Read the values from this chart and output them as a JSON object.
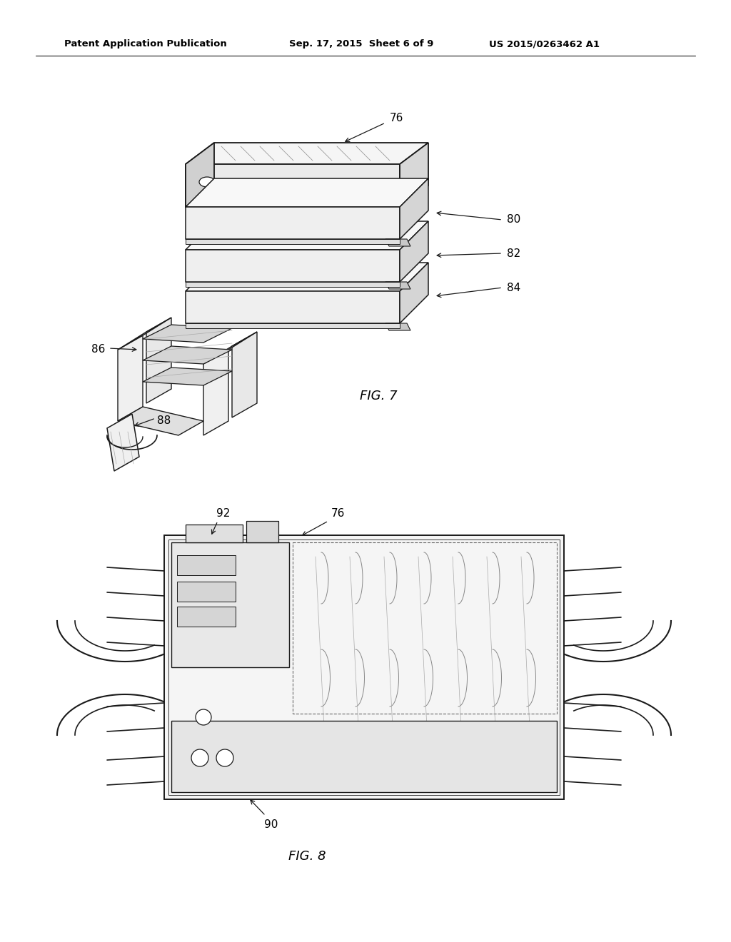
{
  "background_color": "#ffffff",
  "header_left": "Patent Application Publication",
  "header_center": "Sep. 17, 2015  Sheet 6 of 9",
  "header_right": "US 2015/0263462 A1",
  "fig7_label": "FIG. 7",
  "fig8_label": "FIG. 8",
  "line_color": "#1a1a1a",
  "text_color": "#000000",
  "header_fontsize": 9.5,
  "ref_fontsize": 11,
  "fig_label_fontsize": 13
}
